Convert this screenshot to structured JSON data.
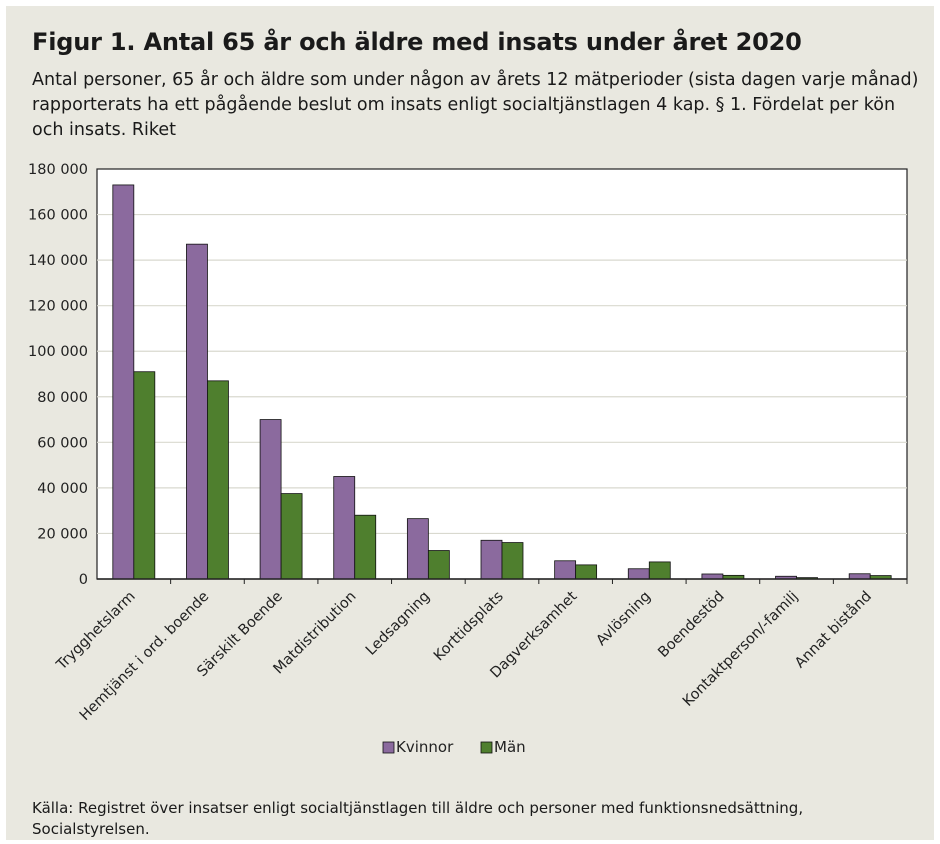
{
  "title": "Figur 1. Antal 65 år och äldre med insats under året 2020",
  "subtitle": "Antal personer, 65 år och äldre som under någon av årets 12 mätperioder (sista dagen varje månad) rapporterats ha ett pågående beslut om insats enligt socialtjänstlagen 4 kap. § 1. Fördelat per kön och insats. Riket",
  "source": "Källa: Registret över insatser enligt socialtjänstlagen till äldre och personer med funktionsnedsättning, Socialstyrelsen.",
  "chart_data": {
    "type": "bar",
    "title": "Figur 1. Antal 65 år och äldre med insats under året 2020",
    "xlabel": "",
    "ylabel": "",
    "ylim": [
      0,
      180000
    ],
    "yticks": [
      0,
      20000,
      40000,
      60000,
      80000,
      100000,
      120000,
      140000,
      160000,
      180000
    ],
    "ytick_labels": [
      "0",
      "20 000",
      "40 000",
      "60 000",
      "80 000",
      "100 000",
      "120 000",
      "140 000",
      "160 000",
      "180 000"
    ],
    "grid": "horizontal",
    "legend_position": "bottom",
    "categories": [
      "Trygghetslarm",
      "Hemtjänst i ord. boende",
      "Särskilt Boende",
      "Matdistribution",
      "Ledsagning",
      "Korttidsplats",
      "Dagverksamhet",
      "Avlösning",
      "Boendestöd",
      "Kontaktperson/-familj",
      "Annat bistånd"
    ],
    "series": [
      {
        "name": "Kvinnor",
        "color": "#8b6a9e",
        "values": [
          173000,
          147000,
          70000,
          45000,
          26500,
          17000,
          8000,
          4500,
          2200,
          1200,
          2300
        ]
      },
      {
        "name": "Män",
        "color": "#4f7f2e",
        "values": [
          91000,
          87000,
          37500,
          28000,
          12500,
          16000,
          6200,
          7500,
          1600,
          600,
          1500
        ]
      }
    ]
  }
}
